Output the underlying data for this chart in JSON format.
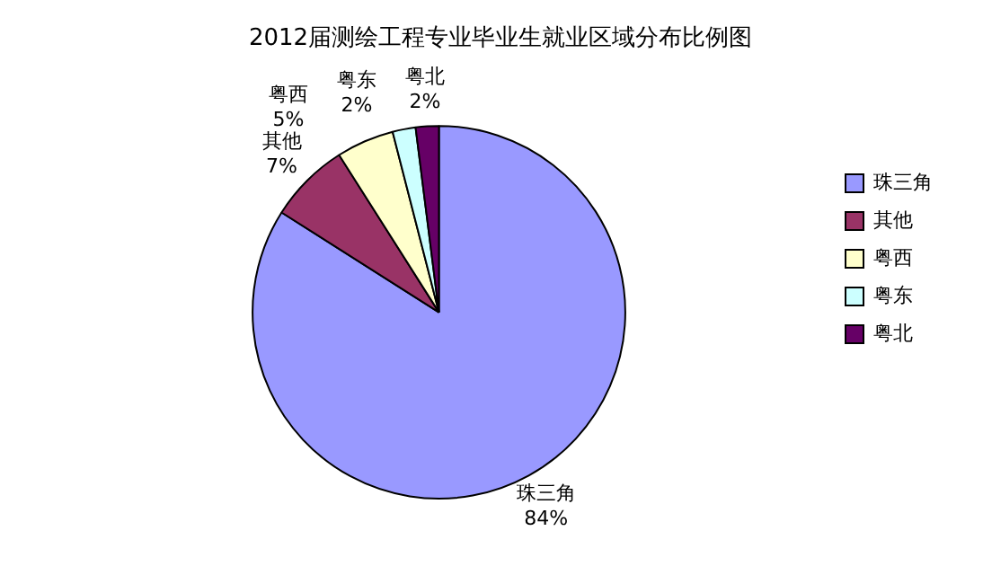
{
  "chart_data": {
    "type": "pie",
    "title": "2012届测绘工程专业毕业生就业区域分布比例图",
    "categories": [
      "珠三角",
      "其他",
      "粤西",
      "粤东",
      "粤北"
    ],
    "values": [
      84,
      7,
      5,
      2,
      2
    ],
    "value_labels": [
      "84%",
      "7%",
      "5%",
      "2%",
      "2%"
    ],
    "colors": [
      "#9999ff",
      "#993366",
      "#ffffcc",
      "#ccffff",
      "#660066"
    ],
    "legend": "right"
  }
}
